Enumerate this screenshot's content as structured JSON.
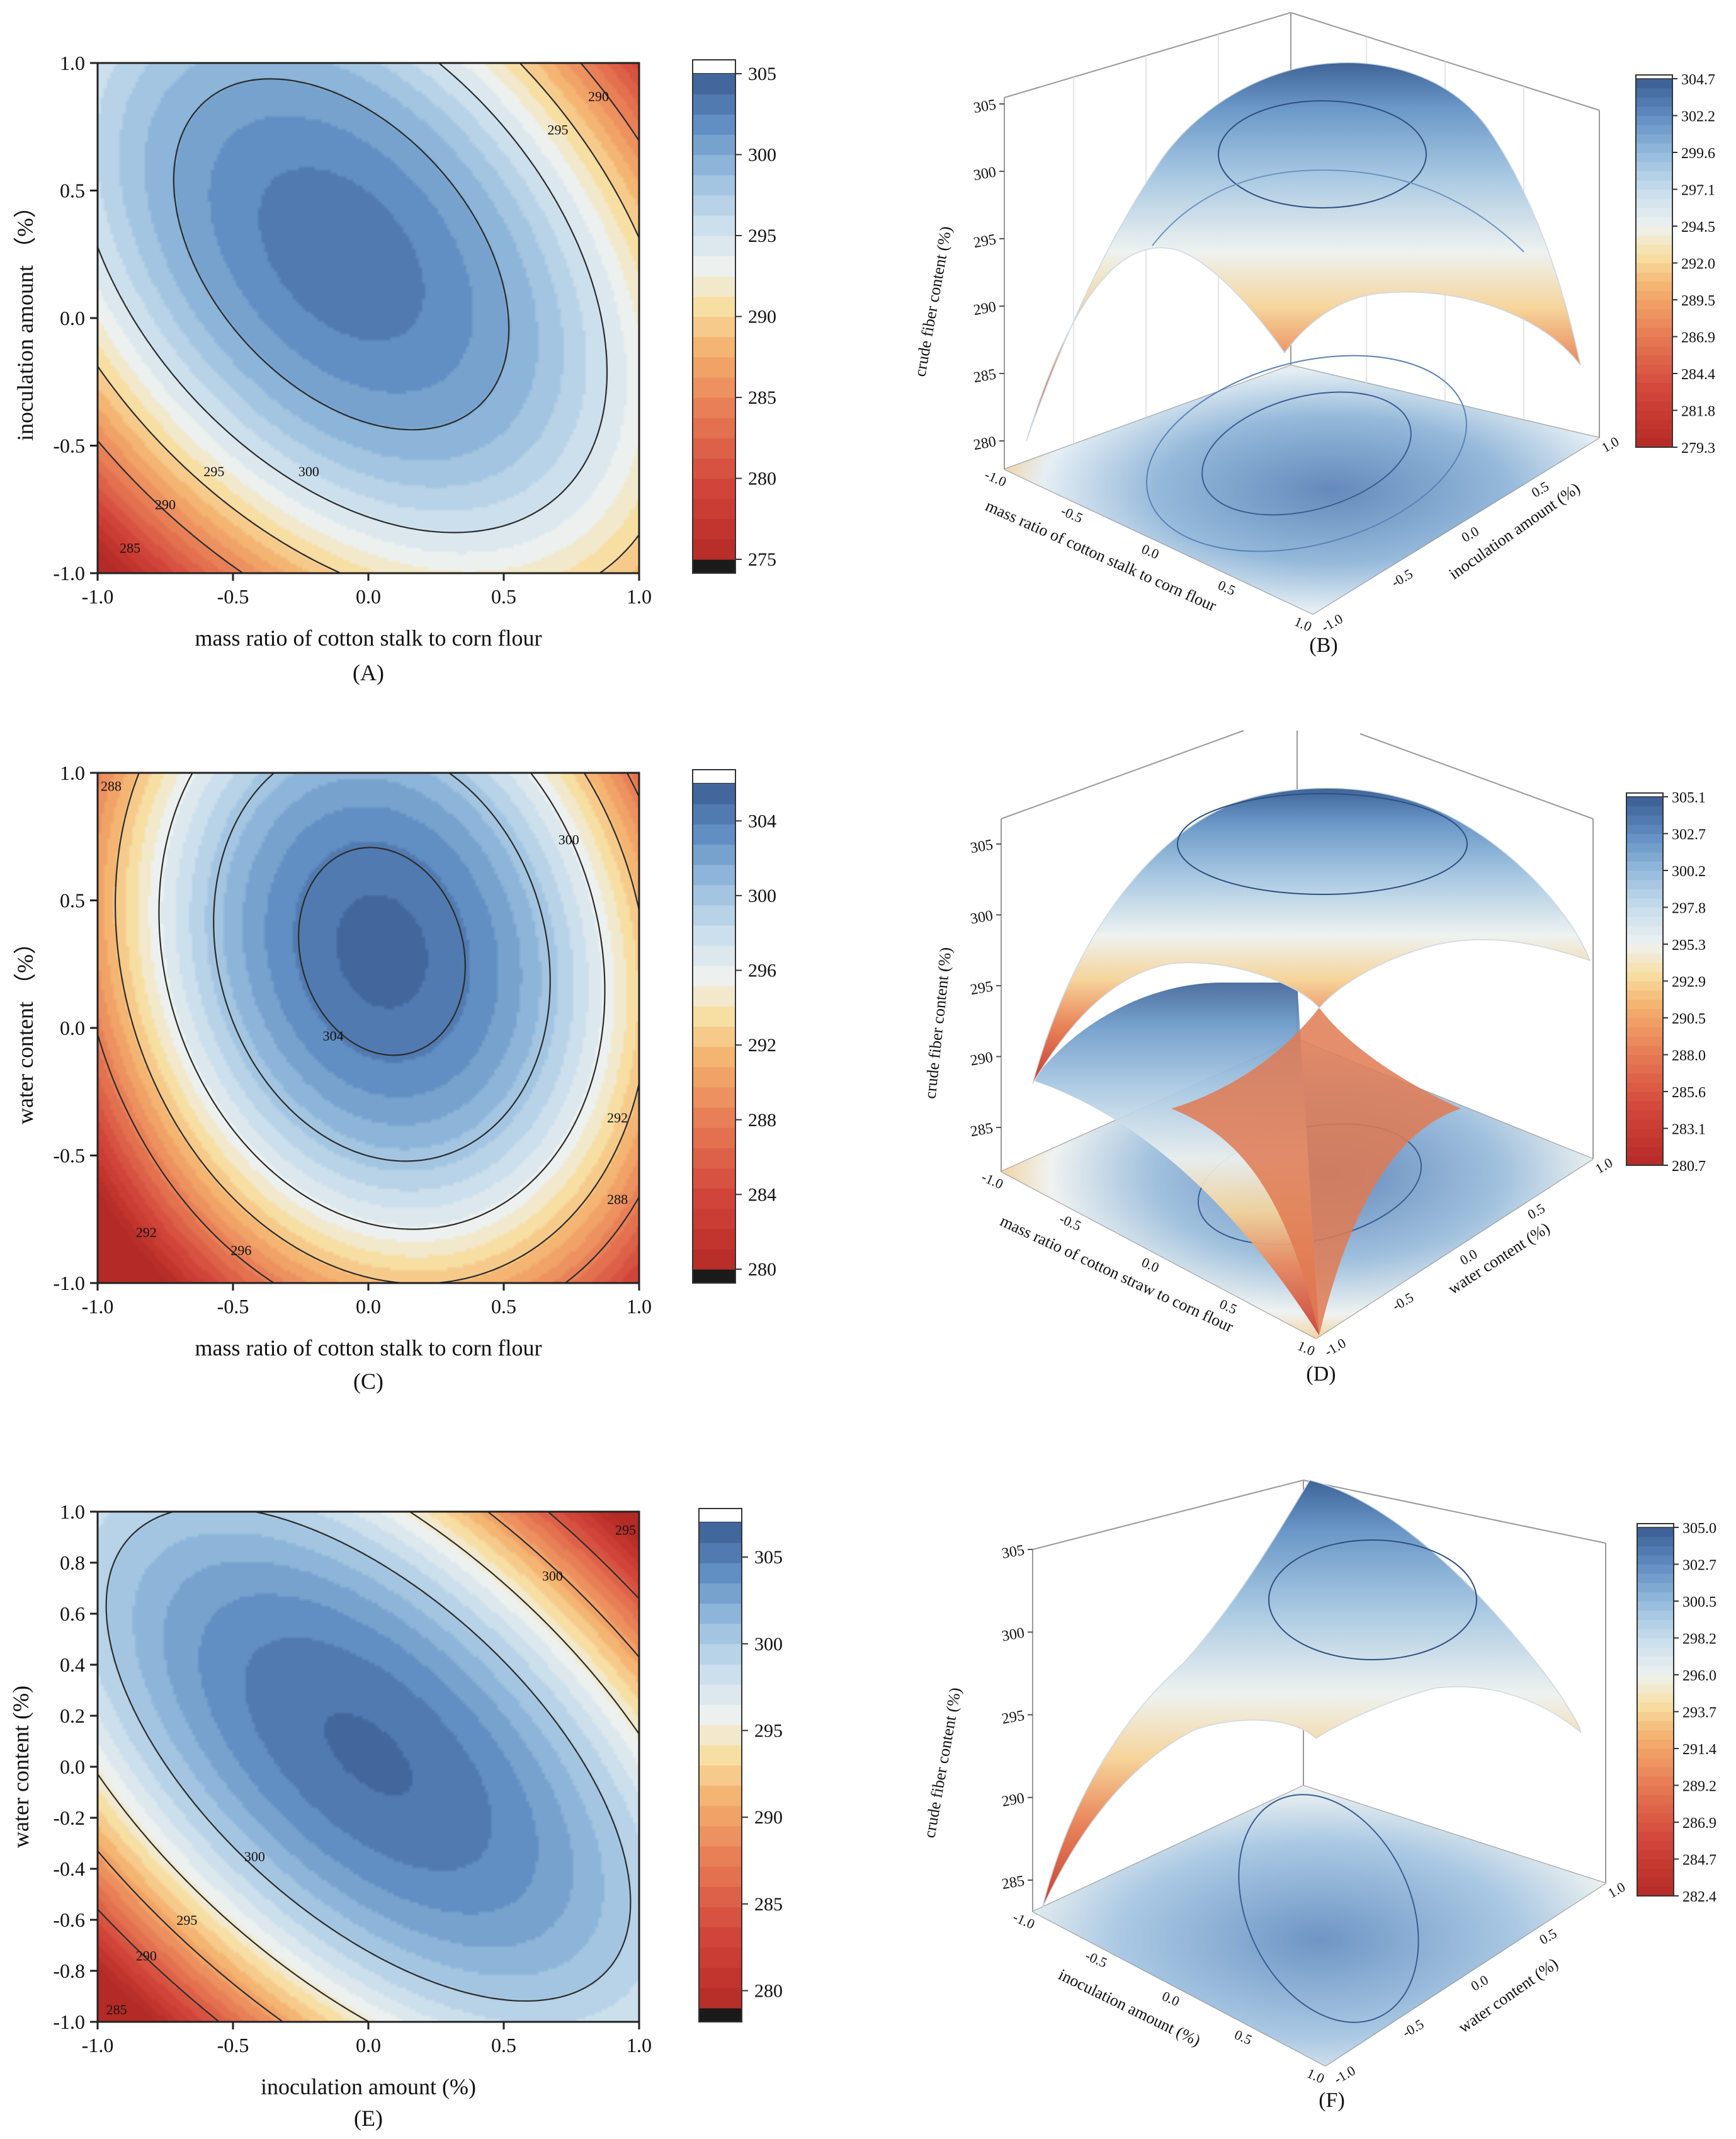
{
  "palette": {
    "stops": [
      "#2a2a2a",
      "#b42a26",
      "#d2453a",
      "#e77a54",
      "#f4b06e",
      "#f7dfa3",
      "#eef2f0",
      "#c7dcec",
      "#94bbdc",
      "#6a98c8",
      "#4c78b2",
      "#3a5d92"
    ]
  },
  "panel_letters": {
    "A": "(A)",
    "B": "(B)",
    "C": "(C)",
    "D": "(D)",
    "E": "(E)",
    "F": "(F)"
  },
  "chart_data": [
    {
      "id": "A",
      "type": "heatmap",
      "subtype": "contour",
      "xlabel": "mass ratio of cotton stalk to corn flour",
      "ylabel": "inoculation amount （%）",
      "xlim": [
        -1,
        1
      ],
      "ylim": [
        -1,
        1
      ],
      "xticks": [
        "-1.0",
        "-0.5",
        "0.0",
        "0.5",
        "1.0"
      ],
      "yticks": [
        "-1.0",
        "-0.5",
        "0.0",
        "0.5",
        "1.0"
      ],
      "model": {
        "c": 303.3,
        "ax": 10.5,
        "ay": 8.5,
        "bxy": 8.0,
        "x0": -0.1,
        "y0": 0.25
      },
      "contour_labels": [
        "285",
        "290",
        "295",
        "300",
        "290",
        "295"
      ],
      "colorbar": {
        "range": [
          275,
          305
        ],
        "ticks": [
          "275",
          "280",
          "285",
          "290",
          "295",
          "300",
          "305"
        ]
      }
    },
    {
      "id": "B",
      "type": "surface3d",
      "xlabel": "mass ratio of cotton stalk to corn flour",
      "ylabel": "inoculation amount (%)",
      "zlabel": "crude fiber content (%)",
      "zticks": [
        "280",
        "285",
        "290",
        "295",
        "300",
        "305"
      ],
      "xticks": [
        "-1.0",
        "-0.5",
        "0.0",
        "0.5",
        "1.0"
      ],
      "yticks": [
        "-1.0",
        "-0.5",
        "0.0",
        "0.5",
        "1.0"
      ],
      "colorbar": {
        "range": [
          279.3,
          304.7
        ],
        "ticks": [
          "279.3",
          "281.8",
          "284.4",
          "286.9",
          "289.5",
          "292.0",
          "294.5",
          "297.1",
          "299.6",
          "302.2",
          "304.7"
        ]
      }
    },
    {
      "id": "C",
      "type": "heatmap",
      "subtype": "contour",
      "xlabel": "mass ratio of cotton stalk to corn flour",
      "ylabel": "water content （%）",
      "xlim": [
        -1,
        1
      ],
      "ylim": [
        -1,
        1
      ],
      "xticks": [
        "-1.0",
        "-0.5",
        "0.0",
        "0.5",
        "1.0"
      ],
      "yticks": [
        "-1.0",
        "-0.5",
        "0.0",
        "0.5",
        "1.0"
      ],
      "model": {
        "c": 305.3,
        "ax": 14.0,
        "ay": 8.0,
        "bxy": 3.0,
        "x0": 0.05,
        "y0": 0.3
      },
      "contour_labels": [
        "288",
        "292",
        "296",
        "304",
        "300",
        "292",
        "288"
      ],
      "colorbar": {
        "range": [
          280,
          306
        ],
        "ticks": [
          "280",
          "284",
          "288",
          "292",
          "296",
          "300",
          "304"
        ]
      }
    },
    {
      "id": "D",
      "type": "surface3d",
      "xlabel": "mass ratio of cotton straw to corn flour",
      "ylabel": "water content (%)",
      "zlabel": "crude fiber content (%)",
      "zticks": [
        "285",
        "290",
        "295",
        "300",
        "305"
      ],
      "xticks": [
        "-1.0",
        "-0.5",
        "0.0",
        "0.5",
        "1.0"
      ],
      "yticks": [
        "-1.0",
        "-0.5",
        "0.0",
        "0.5",
        "1.0"
      ],
      "colorbar": {
        "range": [
          280.7,
          305.1
        ],
        "ticks": [
          "280.7",
          "283.1",
          "285.6",
          "288.0",
          "290.5",
          "292.9",
          "295.3",
          "297.8",
          "300.2",
          "302.7",
          "305.1"
        ]
      }
    },
    {
      "id": "E",
      "type": "heatmap",
      "subtype": "contour",
      "xlabel": "inoculation amount (%)",
      "ylabel": "water content  (%)",
      "xlim": [
        -1,
        1
      ],
      "ylim": [
        -1,
        1
      ],
      "xticks": [
        "-1.0",
        "-0.5",
        "0.0",
        "0.5",
        "1.0"
      ],
      "yticks": [
        "-1.0",
        "-0.8",
        "-0.6",
        "-0.4",
        "-0.2",
        "0.0",
        "0.2",
        "0.4",
        "0.6",
        "0.8",
        "1.0"
      ],
      "model": {
        "c": 306.0,
        "ax": 10.0,
        "ay": 10.0,
        "bxy": 12.0,
        "x0": 0.0,
        "y0": 0.05
      },
      "contour_labels": [
        "285",
        "290",
        "295",
        "300",
        "300",
        "295"
      ],
      "colorbar": {
        "range": [
          279,
          307
        ],
        "ticks": [
          "280",
          "285",
          "290",
          "295",
          "300",
          "305"
        ]
      }
    },
    {
      "id": "F",
      "type": "surface3d",
      "xlabel": "inoculation amount (%)",
      "ylabel": "water content (%)",
      "zlabel": "crude fiber content (%)",
      "zticks": [
        "285",
        "290",
        "295",
        "300",
        "305"
      ],
      "xticks": [
        "-1.0",
        "-0.5",
        "0.0",
        "0.5",
        "1.0"
      ],
      "yticks": [
        "-1.0",
        "-0.5",
        "0.0",
        "0.5",
        "1.0"
      ],
      "colorbar": {
        "range": [
          282.4,
          305.0
        ],
        "ticks": [
          "282.4",
          "284.7",
          "286.9",
          "289.2",
          "291.4",
          "293.7",
          "296.0",
          "298.2",
          "300.5",
          "302.7",
          "305.0"
        ]
      }
    }
  ]
}
